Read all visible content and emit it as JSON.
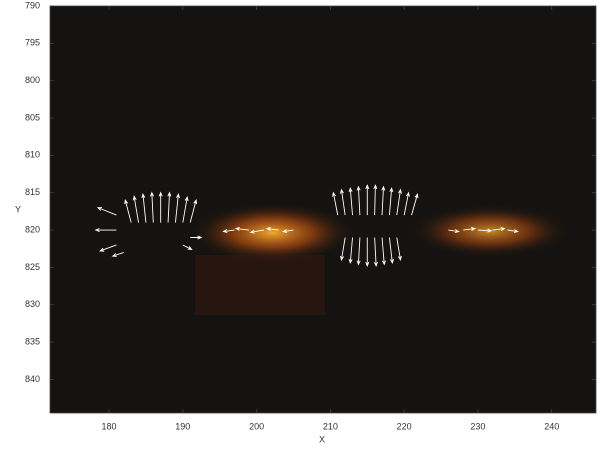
{
  "chart_data": {
    "type": "quiver",
    "xlabel": "X",
    "ylabel": "Y",
    "xlim": [
      172,
      246
    ],
    "ylim": [
      790,
      844.5
    ],
    "y_reversed": true,
    "xticks": [
      180,
      190,
      200,
      210,
      220,
      230,
      240
    ],
    "yticks": [
      790,
      795,
      800,
      805,
      810,
      815,
      820,
      825,
      830,
      835,
      840
    ],
    "color": "#ffffff",
    "x": [
      183,
      184,
      185,
      186,
      187,
      188,
      189,
      190,
      191,
      181,
      181,
      181,
      182,
      190,
      191,
      211,
      212,
      213,
      214,
      215,
      216,
      217,
      218,
      219,
      220,
      221,
      212,
      213,
      214,
      215,
      216,
      217,
      218,
      219,
      197,
      199,
      201,
      203,
      205,
      226,
      228,
      230,
      232,
      234
    ],
    "y": [
      819,
      819,
      819,
      819,
      819,
      819,
      819,
      819,
      819,
      818,
      820,
      822,
      823,
      822,
      821,
      818,
      818,
      818,
      818,
      818,
      818,
      818,
      818,
      818,
      818,
      818,
      821,
      821,
      821,
      821,
      821,
      821,
      821,
      821,
      820,
      820,
      820,
      820,
      820,
      820,
      820,
      820,
      820,
      820
    ],
    "u": [
      -0.8,
      -0.6,
      -0.4,
      -0.2,
      0,
      0.2,
      0.4,
      0.6,
      0.8,
      -2.5,
      -2.8,
      -2.2,
      -1.5,
      1.2,
      1.5,
      -0.6,
      -0.5,
      -0.3,
      -0.2,
      0,
      0.1,
      0.2,
      0.3,
      0.5,
      0.6,
      0.8,
      -0.5,
      -0.3,
      -0.2,
      0,
      0.2,
      0.3,
      0.4,
      0.5,
      -1.5,
      -1.8,
      -1.8,
      -1.6,
      -1.4,
      1.4,
      1.6,
      1.8,
      1.6,
      1.4
    ],
    "v": [
      -3,
      -3.5,
      -3.8,
      -4,
      -4,
      -4,
      -3.8,
      -3.4,
      -3,
      -1,
      0,
      0.8,
      0.5,
      0.6,
      0,
      -3,
      -3.4,
      -3.6,
      -3.8,
      -4,
      -4,
      -3.8,
      -3.6,
      -3.4,
      -3,
      -2.8,
      3,
      3.4,
      3.6,
      3.8,
      3.8,
      3.6,
      3.4,
      3,
      0.2,
      -0.2,
      0.3,
      -0.2,
      0.2,
      0.2,
      -0.2,
      0.1,
      -0.2,
      0.2
    ]
  }
}
